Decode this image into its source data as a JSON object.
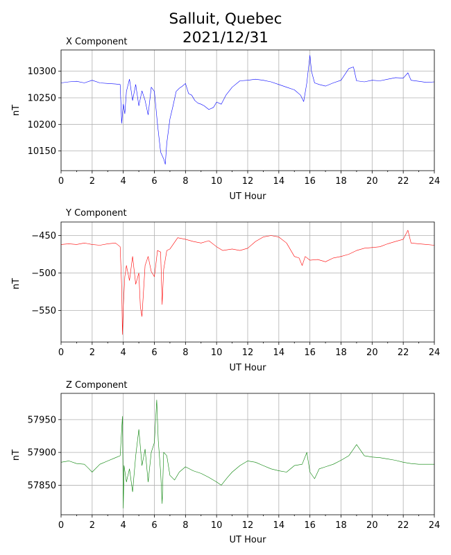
{
  "figure": {
    "title_line1": "Salluit, Quebec",
    "title_line2": "2021/12/31"
  },
  "chart_data": [
    {
      "type": "line",
      "title": "X Component",
      "xlabel": "UT Hour",
      "ylabel": "nT",
      "xlim": [
        0,
        24
      ],
      "ylim": [
        10113,
        10340
      ],
      "xticks": [
        0,
        2,
        4,
        6,
        8,
        10,
        12,
        14,
        16,
        18,
        20,
        22,
        24
      ],
      "yticks": [
        10150,
        10200,
        10250,
        10300
      ],
      "grid": true,
      "color": "#0000ff",
      "series": [
        {
          "x": [
            0,
            0.5,
            1,
            1.5,
            2,
            2.5,
            3,
            3.5,
            3.8,
            3.9,
            4.0,
            4.1,
            4.2,
            4.4,
            4.6,
            4.8,
            5.0,
            5.2,
            5.4,
            5.6,
            5.8,
            6.0,
            6.2,
            6.4,
            6.6,
            6.7,
            6.8,
            7.0,
            7.2,
            7.4,
            7.6,
            7.8,
            8.0,
            8.2,
            8.4,
            8.6,
            8.8,
            9.0,
            9.2,
            9.5,
            9.8,
            10.0,
            10.3,
            10.6,
            11.0,
            11.5,
            12.0,
            12.5,
            13.0,
            13.5,
            14.0,
            14.5,
            15.0,
            15.4,
            15.6,
            15.8,
            16.0,
            16.1,
            16.3,
            16.6,
            17.0,
            17.5,
            18.0,
            18.5,
            18.8,
            19.0,
            19.5,
            20.0,
            20.5,
            21.0,
            21.5,
            22.0,
            22.3,
            22.5,
            23.0,
            23.5,
            24.0
          ],
          "y": [
            10278,
            10280,
            10281,
            10278,
            10283,
            10278,
            10277,
            10276,
            10275,
            10202,
            10238,
            10220,
            10262,
            10285,
            10245,
            10275,
            10235,
            10263,
            10245,
            10218,
            10270,
            10262,
            10200,
            10148,
            10135,
            10125,
            10165,
            10210,
            10235,
            10262,
            10268,
            10272,
            10277,
            10258,
            10255,
            10245,
            10240,
            10238,
            10235,
            10228,
            10232,
            10242,
            10238,
            10255,
            10270,
            10282,
            10283,
            10285,
            10283,
            10280,
            10275,
            10270,
            10265,
            10255,
            10243,
            10278,
            10330,
            10300,
            10278,
            10275,
            10272,
            10278,
            10283,
            10305,
            10308,
            10282,
            10280,
            10283,
            10282,
            10285,
            10288,
            10287,
            10297,
            10283,
            10281,
            10279,
            10280
          ]
        }
      ]
    },
    {
      "type": "line",
      "title": "Y Component",
      "xlabel": "UT Hour",
      "ylabel": "nT",
      "xlim": [
        0,
        24
      ],
      "ylim": [
        -592,
        -432
      ],
      "xticks": [
        0,
        2,
        4,
        6,
        8,
        10,
        12,
        14,
        16,
        18,
        20,
        22,
        24
      ],
      "yticks": [
        -450,
        -500,
        -550
      ],
      "grid": true,
      "color": "#ff0000",
      "series": [
        {
          "x": [
            0,
            0.5,
            1,
            1.5,
            2,
            2.5,
            3,
            3.5,
            3.8,
            3.9,
            3.95,
            4.0,
            4.1,
            4.2,
            4.4,
            4.6,
            4.8,
            5.0,
            5.1,
            5.2,
            5.4,
            5.6,
            5.8,
            6.0,
            6.2,
            6.4,
            6.5,
            6.6,
            6.8,
            7.0,
            7.2,
            7.5,
            8.0,
            8.5,
            9.0,
            9.5,
            10.0,
            10.4,
            11.0,
            11.5,
            12.0,
            12.5,
            13.0,
            13.5,
            14.0,
            14.5,
            15.0,
            15.3,
            15.5,
            15.7,
            16.0,
            16.5,
            17.0,
            17.5,
            18.0,
            18.5,
            19.0,
            19.5,
            20.0,
            20.5,
            21.0,
            21.5,
            22.0,
            22.3,
            22.5,
            23.0,
            23.5,
            24.0
          ],
          "y": [
            -462,
            -461,
            -462,
            -460,
            -462,
            -463,
            -461,
            -460,
            -465,
            -520,
            -582,
            -545,
            -505,
            -490,
            -510,
            -478,
            -515,
            -500,
            -545,
            -558,
            -490,
            -478,
            -498,
            -505,
            -470,
            -472,
            -542,
            -495,
            -470,
            -468,
            -462,
            -453,
            -455,
            -458,
            -460,
            -457,
            -465,
            -470,
            -468,
            -470,
            -467,
            -458,
            -452,
            -450,
            -452,
            -460,
            -478,
            -480,
            -490,
            -478,
            -483,
            -482,
            -485,
            -480,
            -478,
            -475,
            -470,
            -467,
            -466,
            -465,
            -461,
            -458,
            -455,
            -443,
            -460,
            -461,
            -462,
            -463
          ]
        }
      ]
    },
    {
      "type": "line",
      "title": "Z Component",
      "xlabel": "UT Hour",
      "ylabel": "nT",
      "xlim": [
        0,
        24
      ],
      "ylim": [
        57805,
        57990
      ],
      "xticks": [
        0,
        2,
        4,
        6,
        8,
        10,
        12,
        14,
        16,
        18,
        20,
        22,
        24
      ],
      "yticks": [
        57850,
        57900,
        57950
      ],
      "grid": true,
      "color": "#008000",
      "series": [
        {
          "x": [
            0,
            0.5,
            1,
            1.5,
            1.8,
            2.0,
            2.5,
            3.0,
            3.5,
            3.8,
            3.95,
            4.0,
            4.05,
            4.2,
            4.4,
            4.6,
            4.8,
            5.0,
            5.2,
            5.4,
            5.6,
            5.8,
            6.0,
            6.15,
            6.25,
            6.4,
            6.5,
            6.6,
            6.8,
            7.0,
            7.3,
            7.6,
            8.0,
            8.5,
            9.0,
            9.5,
            10.0,
            10.3,
            10.7,
            11.0,
            11.5,
            12.0,
            12.5,
            13.0,
            13.5,
            14.0,
            14.5,
            15.0,
            15.5,
            15.8,
            16.0,
            16.3,
            16.6,
            17.0,
            17.5,
            18.0,
            18.5,
            18.8,
            19.0,
            19.5,
            20.0,
            20.5,
            21.0,
            21.5,
            22.0,
            22.5,
            23.0,
            23.5,
            24.0
          ],
          "y": [
            57885,
            57887,
            57883,
            57882,
            57875,
            57870,
            57882,
            57887,
            57892,
            57895,
            57955,
            57815,
            57880,
            57855,
            57875,
            57840,
            57895,
            57935,
            57880,
            57905,
            57855,
            57900,
            57915,
            57980,
            57918,
            57870,
            57822,
            57900,
            57895,
            57865,
            57858,
            57870,
            57878,
            57872,
            57868,
            57862,
            57855,
            57850,
            57862,
            57870,
            57880,
            57887,
            57885,
            57880,
            57875,
            57872,
            57870,
            57880,
            57882,
            57900,
            57870,
            57860,
            57875,
            57878,
            57882,
            57888,
            57895,
            57905,
            57912,
            57895,
            57893,
            57892,
            57890,
            57888,
            57885,
            57883,
            57882,
            57882,
            57882
          ]
        }
      ]
    }
  ]
}
